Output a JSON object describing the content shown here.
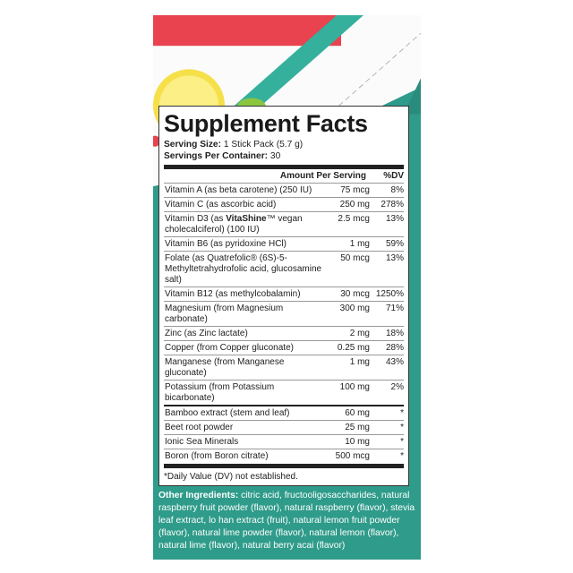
{
  "title": "Supplement Facts",
  "serving_size_label": "Serving Size:",
  "serving_size": "1 Stick Pack (5.7 g)",
  "servings_label": "Servings Per Container:",
  "servings": "30",
  "header": {
    "amount": "Amount Per Serving",
    "dv": "%DV"
  },
  "nutrients": [
    {
      "name": "Vitamin A (as beta carotene) (250 IU)",
      "amount": "75 mcg",
      "dv": "8%"
    },
    {
      "name": "Vitamin C (as ascorbic acid)",
      "amount": "250 mg",
      "dv": "278%"
    },
    {
      "name_pre": "Vitamin D3 (as ",
      "name_bold": "VitaShine",
      "name_post": "™ vegan cholecalciferol) (100 IU)",
      "amount": "2.5 mcg",
      "dv": "13%"
    },
    {
      "name": "Vitamin B6 (as pyridoxine HCl)",
      "amount": "1 mg",
      "dv": "59%"
    },
    {
      "name": "Folate (as Quatrefolic® (6S)-5-Methyltetrahydrofolic acid, glucosamine salt)",
      "amount": "50 mcg",
      "dv": "13%"
    },
    {
      "name": "Vitamin B12 (as methylcobalamin)",
      "amount": "30 mcg",
      "dv": "1250%"
    },
    {
      "name": "Magnesium (from Magnesium carbonate)",
      "amount": "300 mg",
      "dv": "71%"
    },
    {
      "name": "Zinc (as Zinc lactate)",
      "amount": "2 mg",
      "dv": "18%"
    },
    {
      "name": "Copper (from Copper gluconate)",
      "amount": "0.25 mg",
      "dv": "28%"
    },
    {
      "name": "Manganese (from Manganese gluconate)",
      "amount": "1 mg",
      "dv": "43%"
    },
    {
      "name": "Potassium (from Potassium bicarbonate)",
      "amount": "100 mg",
      "dv": "2%"
    }
  ],
  "others": [
    {
      "name": "Bamboo extract (stem and leaf)",
      "amount": "60 mg",
      "dv": "*"
    },
    {
      "name": "Beet root powder",
      "amount": "25 mg",
      "dv": "*"
    },
    {
      "name": "Ionic Sea Minerals",
      "amount": "10 mg",
      "dv": "*"
    },
    {
      "name": "Boron (from Boron citrate)",
      "amount": "500 mcg",
      "dv": "*"
    }
  ],
  "footnote": "*Daily Value (DV) not established.",
  "other_ingredients_label": "Other Ingredients:",
  "other_ingredients": "citric acid, fructooligosaccharides, natural raspberry fruit powder (flavor), natural raspberry (flavor), stevia leaf extract, lo han extract (fruit), natural lemon fruit powder (flavor), natural lime powder (flavor), natural lemon (flavor), natural lime (flavor), natural berry acai (flavor)",
  "colors": {
    "red": "#e8434f",
    "teal": "#2f9b8a",
    "stripe": "#34b09c"
  }
}
